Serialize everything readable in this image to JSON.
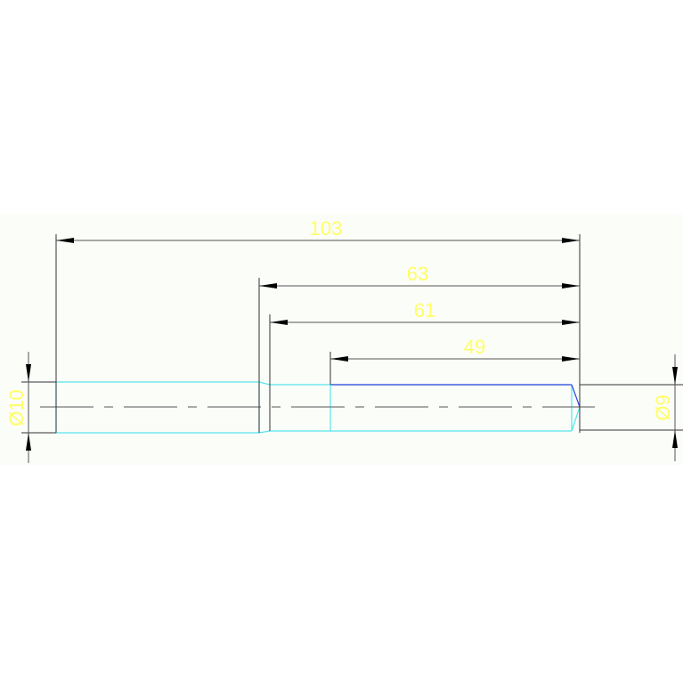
{
  "drawing": {
    "dimensions": {
      "overall_length": "103",
      "length_2": "63",
      "length_3": "61",
      "length_4": "49",
      "left_diameter": "Ø10",
      "right_diameter": "Ø9"
    },
    "colors": {
      "background": "#ffffff",
      "band": "#fbfdf9",
      "outline_cyan": "#55e6ee",
      "outline_blue": "#3344dd",
      "dimension_line": "#333333",
      "dimension_text": "#ffff66",
      "centerline": "#777777"
    }
  }
}
